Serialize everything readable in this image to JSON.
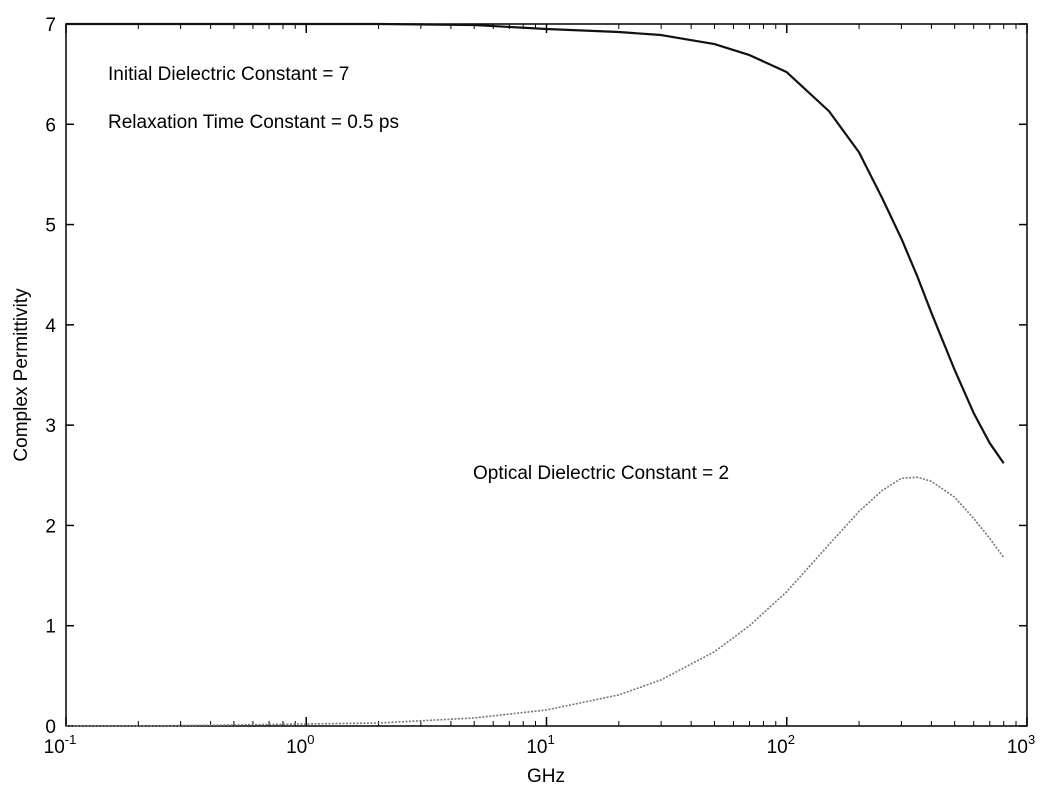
{
  "chart_data": {
    "type": "line",
    "title": "",
    "xlabel": "GHz",
    "ylabel": "Complex Permittivity",
    "xscale": "log",
    "xlim": [
      0.1,
      1000
    ],
    "ylim": [
      0,
      7
    ],
    "grid": false,
    "x_ticks": [
      {
        "base": "10",
        "exp": "-1",
        "value": 0.1
      },
      {
        "base": "10",
        "exp": "0",
        "value": 1
      },
      {
        "base": "10",
        "exp": "1",
        "value": 10
      },
      {
        "base": "10",
        "exp": "2",
        "value": 100
      },
      {
        "base": "10",
        "exp": "3",
        "value": 1000
      }
    ],
    "y_ticks": [
      "0",
      "1",
      "2",
      "3",
      "4",
      "5",
      "6",
      "7"
    ],
    "annotations": [
      "Initial Dielectric Constant = 7",
      "Relaxation Time Constant = 0.5 ps",
      "Optical Dielectric Constant = 2"
    ],
    "series": [
      {
        "color": "#111111",
        "style": "solid",
        "x": [
          0.1,
          0.2,
          0.5,
          1,
          2,
          5,
          10,
          20,
          30,
          50,
          70,
          100,
          150,
          200,
          250,
          300,
          350,
          400,
          500,
          600,
          700,
          800
        ],
        "y": [
          7.0,
          7.0,
          7.0,
          7.0,
          7.0,
          6.99,
          6.95,
          6.92,
          6.89,
          6.8,
          6.69,
          6.52,
          6.13,
          5.72,
          5.26,
          4.86,
          4.48,
          4.12,
          3.55,
          3.12,
          2.82,
          2.62
        ]
      },
      {
        "color": "#777777",
        "style": "dotted",
        "x": [
          0.1,
          0.2,
          0.5,
          1,
          2,
          5,
          10,
          20,
          30,
          50,
          70,
          100,
          150,
          200,
          250,
          300,
          350,
          400,
          500,
          600,
          700,
          800
        ],
        "y": [
          0.0,
          0.0,
          0.01,
          0.02,
          0.03,
          0.08,
          0.16,
          0.31,
          0.46,
          0.74,
          1.0,
          1.34,
          1.81,
          2.14,
          2.35,
          2.47,
          2.48,
          2.44,
          2.28,
          2.07,
          1.87,
          1.68
        ]
      }
    ]
  }
}
